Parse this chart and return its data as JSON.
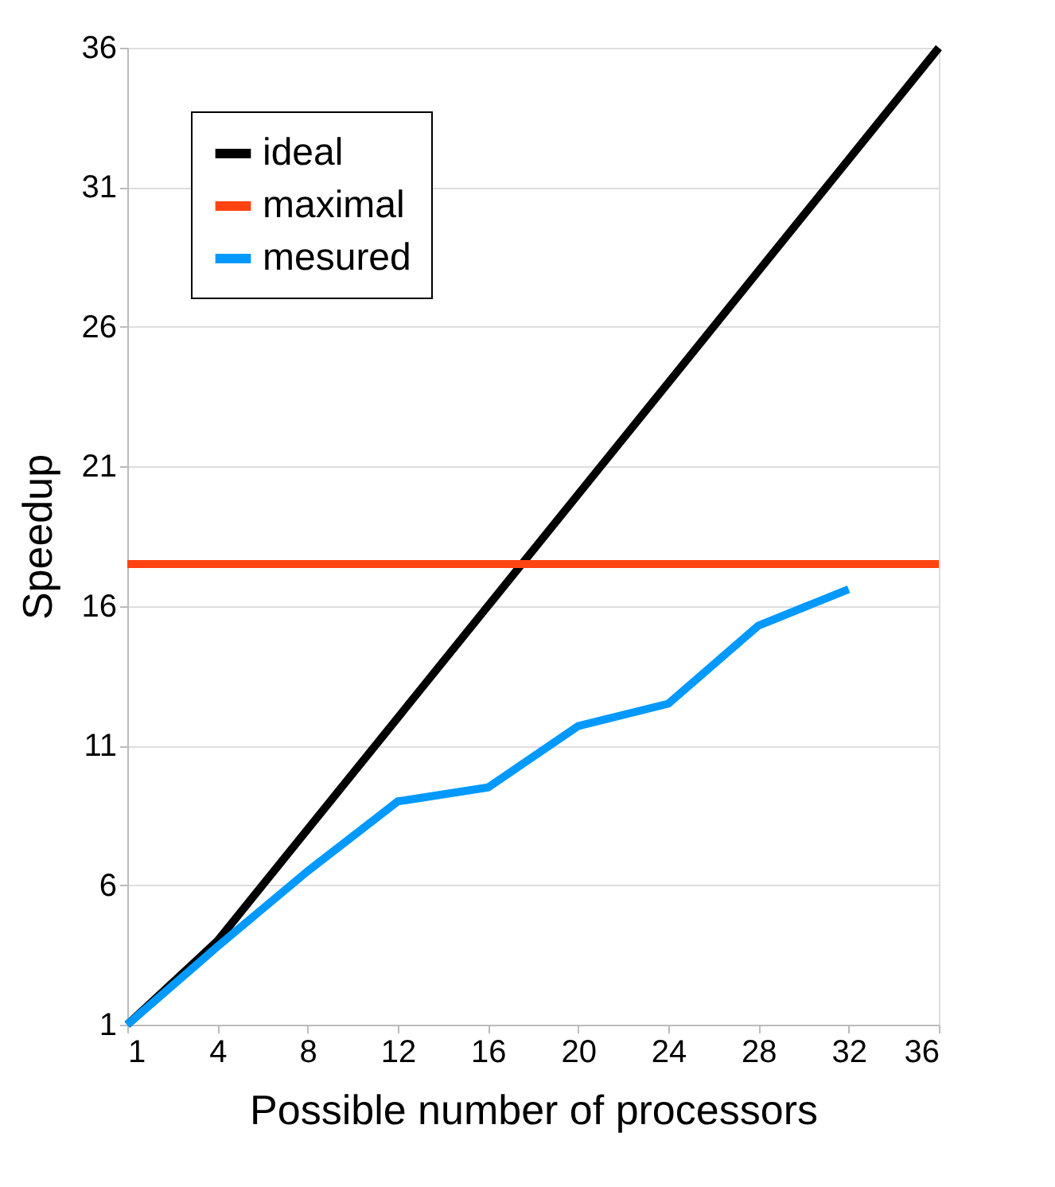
{
  "chart_data": {
    "type": "line",
    "xlabel": "Possible number of processors",
    "ylabel": "Speedup",
    "categories": [
      "1",
      "4",
      "8",
      "12",
      "16",
      "20",
      "24",
      "28",
      "32",
      "36"
    ],
    "series": [
      {
        "name": "ideal",
        "color": "#000000",
        "values": [
          1,
          4,
          8,
          12,
          16,
          20,
          24,
          28,
          32,
          36
        ]
      },
      {
        "name": "maximal",
        "color": "#ff4411",
        "values": [
          17.5,
          17.5,
          17.5,
          17.5,
          17.5,
          17.5,
          17.5,
          17.5,
          17.5,
          17.5
        ]
      },
      {
        "name": "mesured",
        "color": "#0099ff",
        "values": [
          1,
          3.8,
          6.5,
          9.0,
          9.5,
          11.7,
          12.5,
          15.3,
          16.6,
          null
        ]
      }
    ],
    "ylim": [
      1,
      36
    ],
    "yticks": [
      1,
      6,
      11,
      16,
      21,
      26,
      31,
      36
    ],
    "grid": "y",
    "legend": "top left",
    "marker": "none",
    "line_style": "solid"
  }
}
